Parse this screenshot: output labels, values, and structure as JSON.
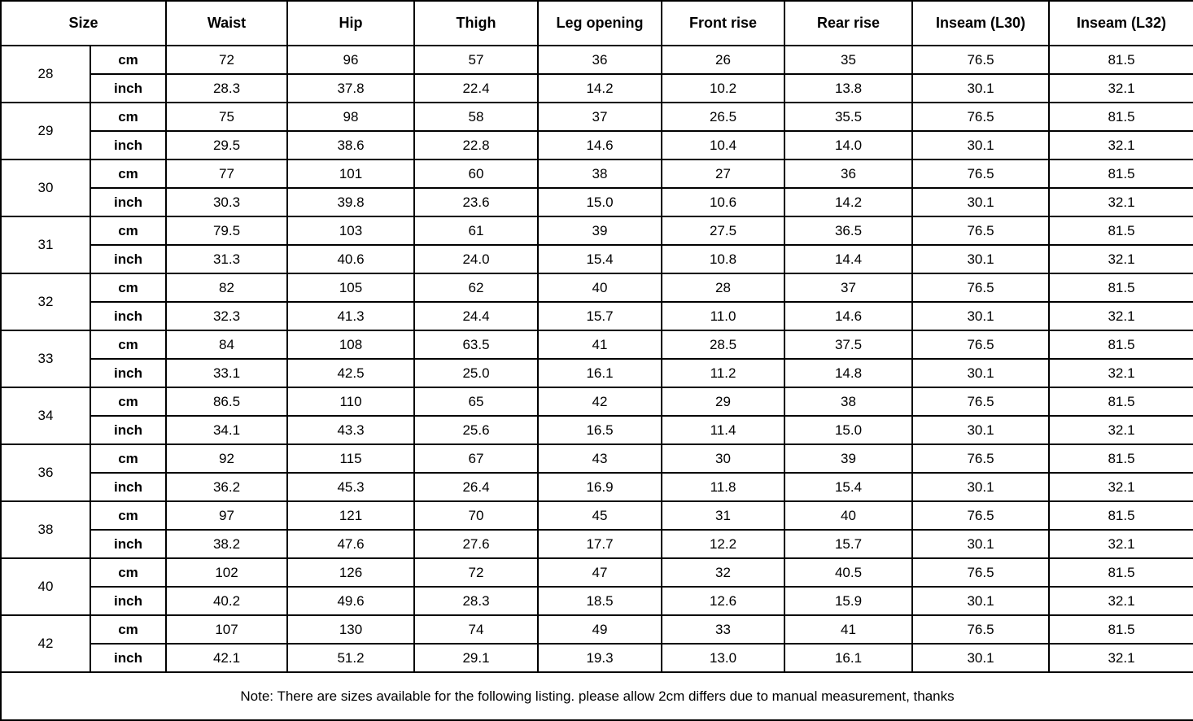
{
  "table": {
    "columns": [
      "Size",
      "Waist",
      "Hip",
      "Thigh",
      "Leg opening",
      "Front rise",
      "Rear rise",
      "Inseam (L30)",
      "Inseam (L32)"
    ],
    "unit_labels": {
      "cm": "cm",
      "inch": "inch"
    },
    "rows": [
      {
        "size": "28",
        "cm": [
          "72",
          "96",
          "57",
          "36",
          "26",
          "35",
          "76.5",
          "81.5"
        ],
        "inch": [
          "28.3",
          "37.8",
          "22.4",
          "14.2",
          "10.2",
          "13.8",
          "30.1",
          "32.1"
        ]
      },
      {
        "size": "29",
        "cm": [
          "75",
          "98",
          "58",
          "37",
          "26.5",
          "35.5",
          "76.5",
          "81.5"
        ],
        "inch": [
          "29.5",
          "38.6",
          "22.8",
          "14.6",
          "10.4",
          "14.0",
          "30.1",
          "32.1"
        ]
      },
      {
        "size": "30",
        "cm": [
          "77",
          "101",
          "60",
          "38",
          "27",
          "36",
          "76.5",
          "81.5"
        ],
        "inch": [
          "30.3",
          "39.8",
          "23.6",
          "15.0",
          "10.6",
          "14.2",
          "30.1",
          "32.1"
        ]
      },
      {
        "size": "31",
        "cm": [
          "79.5",
          "103",
          "61",
          "39",
          "27.5",
          "36.5",
          "76.5",
          "81.5"
        ],
        "inch": [
          "31.3",
          "40.6",
          "24.0",
          "15.4",
          "10.8",
          "14.4",
          "30.1",
          "32.1"
        ]
      },
      {
        "size": "32",
        "cm": [
          "82",
          "105",
          "62",
          "40",
          "28",
          "37",
          "76.5",
          "81.5"
        ],
        "inch": [
          "32.3",
          "41.3",
          "24.4",
          "15.7",
          "11.0",
          "14.6",
          "30.1",
          "32.1"
        ]
      },
      {
        "size": "33",
        "cm": [
          "84",
          "108",
          "63.5",
          "41",
          "28.5",
          "37.5",
          "76.5",
          "81.5"
        ],
        "inch": [
          "33.1",
          "42.5",
          "25.0",
          "16.1",
          "11.2",
          "14.8",
          "30.1",
          "32.1"
        ]
      },
      {
        "size": "34",
        "cm": [
          "86.5",
          "110",
          "65",
          "42",
          "29",
          "38",
          "76.5",
          "81.5"
        ],
        "inch": [
          "34.1",
          "43.3",
          "25.6",
          "16.5",
          "11.4",
          "15.0",
          "30.1",
          "32.1"
        ]
      },
      {
        "size": "36",
        "cm": [
          "92",
          "115",
          "67",
          "43",
          "30",
          "39",
          "76.5",
          "81.5"
        ],
        "inch": [
          "36.2",
          "45.3",
          "26.4",
          "16.9",
          "11.8",
          "15.4",
          "30.1",
          "32.1"
        ]
      },
      {
        "size": "38",
        "cm": [
          "97",
          "121",
          "70",
          "45",
          "31",
          "40",
          "76.5",
          "81.5"
        ],
        "inch": [
          "38.2",
          "47.6",
          "27.6",
          "17.7",
          "12.2",
          "15.7",
          "30.1",
          "32.1"
        ]
      },
      {
        "size": "40",
        "cm": [
          "102",
          "126",
          "72",
          "47",
          "32",
          "40.5",
          "76.5",
          "81.5"
        ],
        "inch": [
          "40.2",
          "49.6",
          "28.3",
          "18.5",
          "12.6",
          "15.9",
          "30.1",
          "32.1"
        ]
      },
      {
        "size": "42",
        "cm": [
          "107",
          "130",
          "74",
          "49",
          "33",
          "41",
          "76.5",
          "81.5"
        ],
        "inch": [
          "42.1",
          "51.2",
          "29.1",
          "19.3",
          "13.0",
          "16.1",
          "30.1",
          "32.1"
        ]
      }
    ],
    "note": "Note: There are sizes available for the following listing. please allow 2cm differs due to manual measurement, thanks"
  }
}
